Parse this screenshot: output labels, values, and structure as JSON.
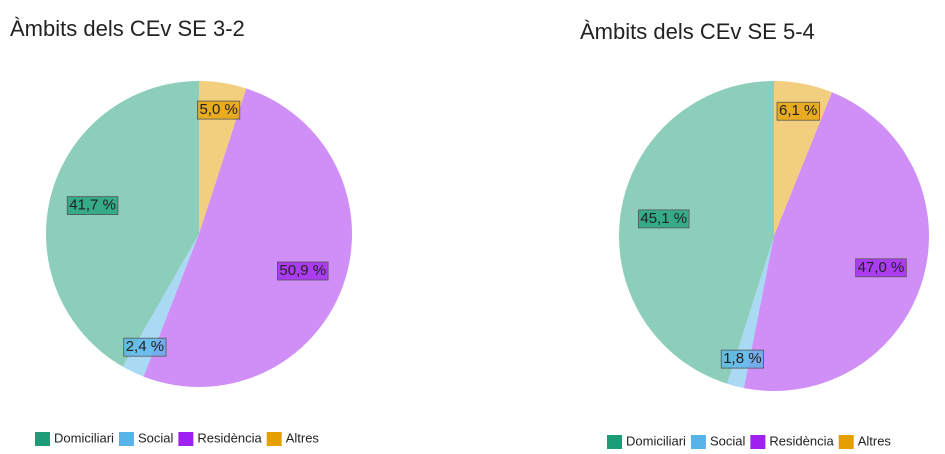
{
  "chart_data": [
    {
      "type": "pie",
      "title": "Àmbits dels CEv SE 3-2",
      "categories": [
        "Domiciliari",
        "Social",
        "Residència",
        "Altres"
      ],
      "values": [
        41.7,
        2.4,
        50.9,
        5.0
      ],
      "value_labels": [
        "41,7 %",
        "2,4 %",
        "50,9 %",
        "5,0 %"
      ],
      "colors": [
        "#1b9e77",
        "#56b4e9",
        "#a020f0",
        "#e69f00"
      ]
    },
    {
      "type": "pie",
      "title": "Àmbits dels CEv SE 5-4",
      "categories": [
        "Domiciliari",
        "Social",
        "Residència",
        "Altres"
      ],
      "values": [
        45.1,
        1.8,
        47.0,
        6.1
      ],
      "value_labels": [
        "45,1 %",
        "1,8 %",
        "47,0 %",
        "6,1 %"
      ],
      "colors": [
        "#1b9e77",
        "#56b4e9",
        "#a020f0",
        "#e69f00"
      ]
    }
  ]
}
